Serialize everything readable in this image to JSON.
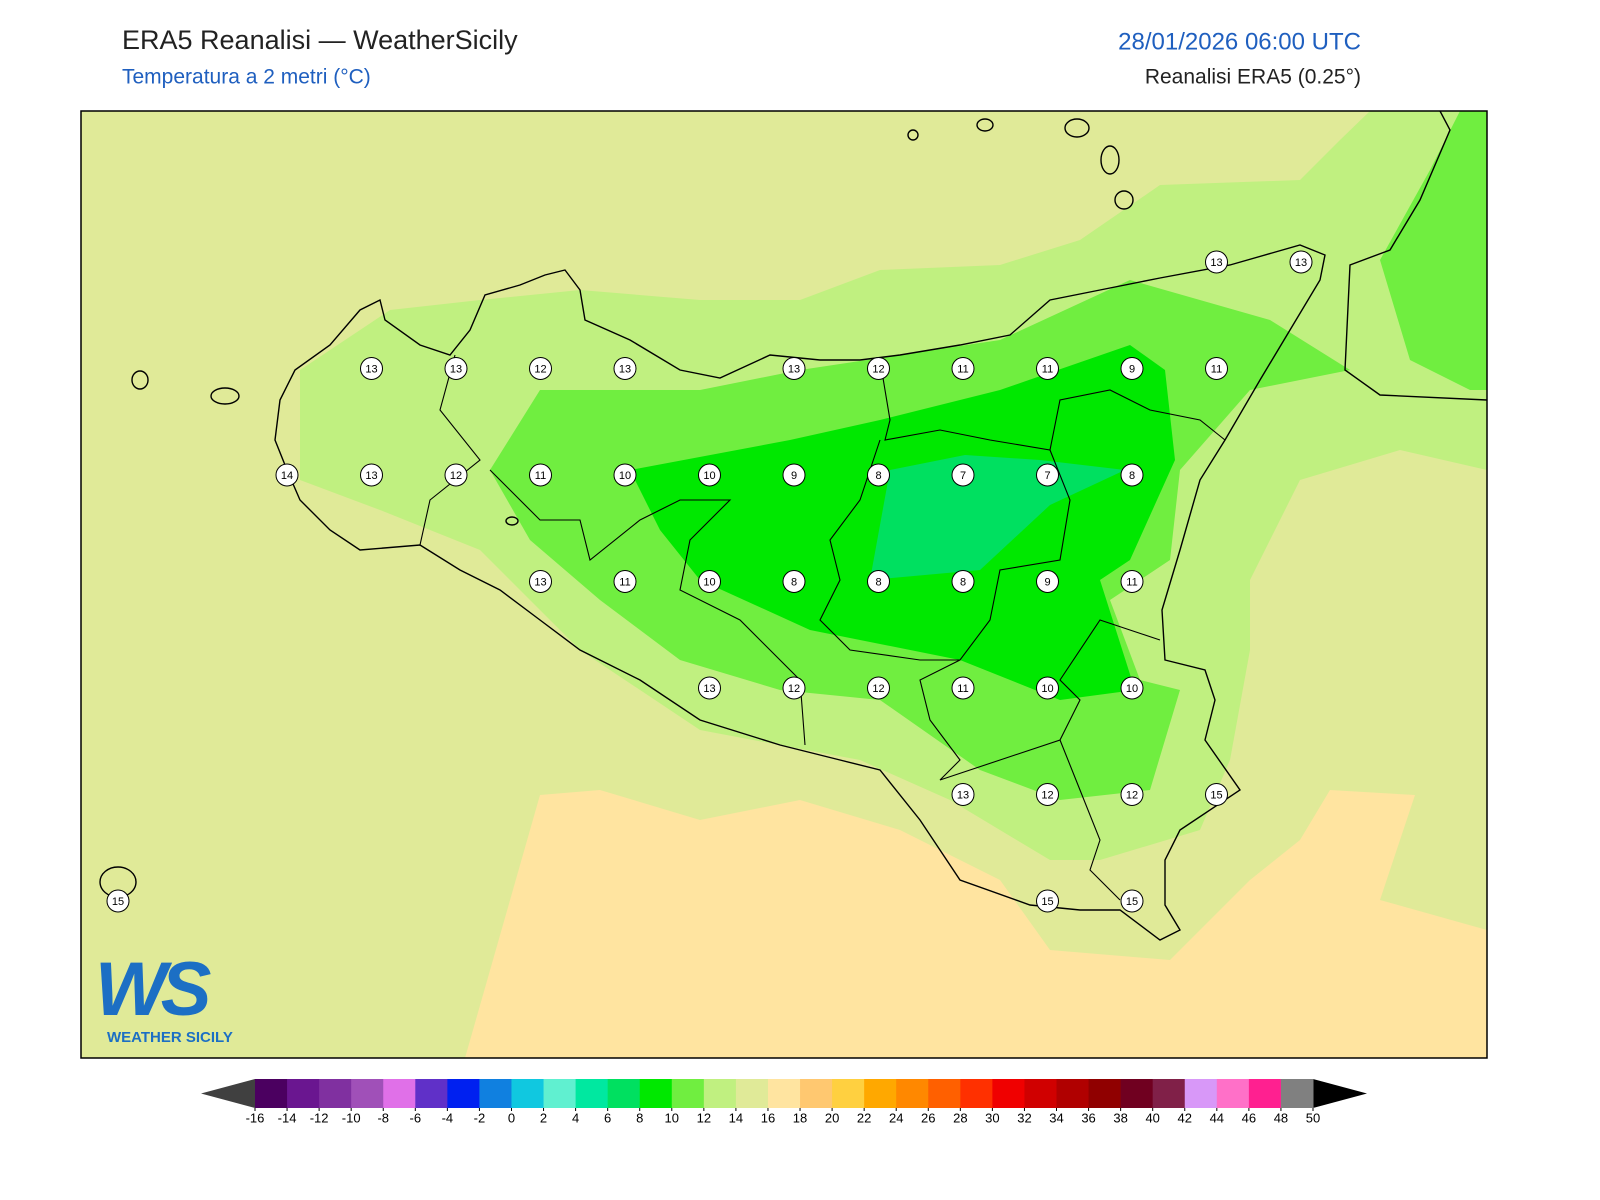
{
  "header": {
    "title": "ERA5 Reanalisi — WeatherSicily",
    "subtitle": "Temperatura a 2 metri (°C)",
    "datetime": "28/01/2026 06:00 UTC",
    "source": "Reanalisi ERA5 (0.25°)"
  },
  "map": {
    "station_grid": [
      [
        null,
        null,
        null,
        null,
        null,
        null,
        null,
        null,
        null,
        null,
        null,
        null,
        null,
        13,
        13
      ],
      [
        null,
        null,
        null,
        13,
        13,
        12,
        13,
        null,
        13,
        12,
        11,
        11,
        9,
        11,
        null
      ],
      [
        null,
        null,
        14,
        13,
        12,
        11,
        10,
        10,
        9,
        8,
        7,
        7,
        8,
        null,
        null
      ],
      [
        null,
        null,
        null,
        null,
        null,
        13,
        11,
        10,
        8,
        8,
        8,
        9,
        11,
        null,
        null
      ],
      [
        null,
        null,
        null,
        null,
        null,
        null,
        null,
        13,
        12,
        12,
        11,
        10,
        10,
        null,
        null
      ],
      [
        null,
        null,
        null,
        null,
        null,
        null,
        null,
        null,
        null,
        null,
        13,
        12,
        12,
        15,
        null
      ],
      [
        15,
        null,
        null,
        null,
        null,
        null,
        null,
        null,
        null,
        null,
        null,
        15,
        15,
        null,
        null
      ]
    ]
  },
  "colorbar": {
    "ticks": [
      -16,
      -14,
      -12,
      -10,
      -8,
      -6,
      -4,
      -2,
      0,
      2,
      4,
      6,
      8,
      10,
      12,
      14,
      16,
      18,
      20,
      22,
      24,
      26,
      28,
      30,
      32,
      34,
      36,
      38,
      40,
      42,
      44,
      46,
      48,
      50
    ],
    "colors": [
      "#4b0060",
      "#6a1690",
      "#8030a0",
      "#a050b8",
      "#e070e8",
      "#6030c8",
      "#0020f0",
      "#1080e0",
      "#10c8e0",
      "#60f0d0",
      "#00e8a0",
      "#00e060",
      "#00e800",
      "#70ee40",
      "#c0f080",
      "#e0ea98",
      "#ffe4a0",
      "#ffc870",
      "#ffd040",
      "#ffa800",
      "#ff8800",
      "#ff6000",
      "#ff3000",
      "#f00000",
      "#d00000",
      "#b00000",
      "#900000",
      "#700020",
      "#802048",
      "#d898f8",
      "#ff70c8",
      "#ff2090",
      "#808080"
    ],
    "under_color": "#404040",
    "over_color": "#000000"
  },
  "logo": {
    "initials": "WS",
    "name": "WEATHER SICILY"
  }
}
